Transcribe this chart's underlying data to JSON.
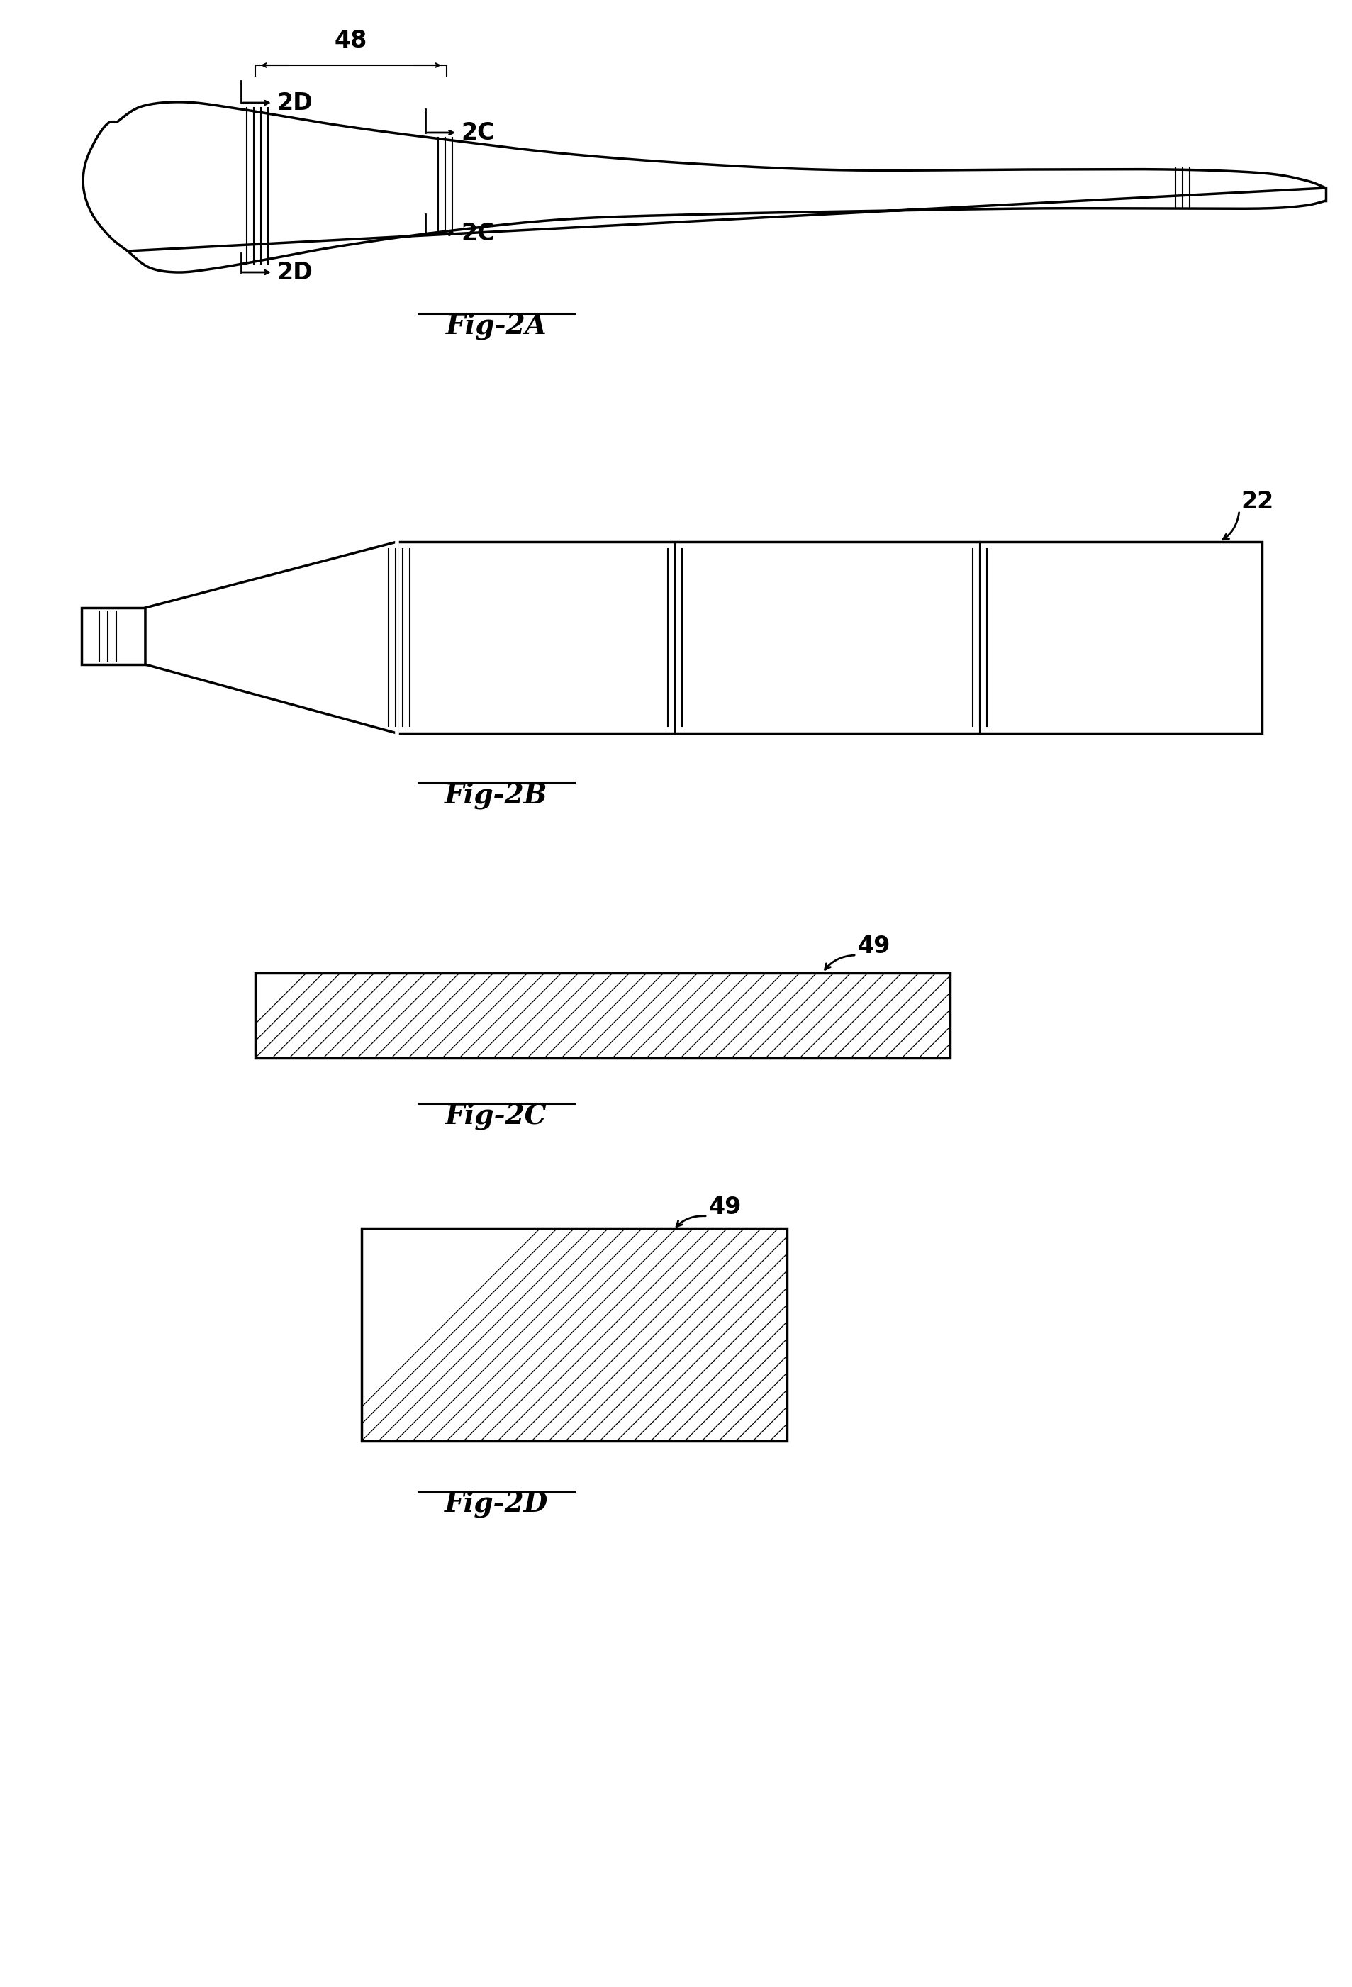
{
  "bg_color": "#ffffff",
  "line_color": "#000000",
  "fig2a_label": "Fig-2A",
  "fig2b_label": "Fig-2B",
  "fig2c_label": "Fig-2C",
  "fig2d_label": "Fig-2D",
  "label_48": "48",
  "label_22": "22",
  "label_49_c": "49",
  "label_49_d": "49",
  "label_2d_top": "2D",
  "label_2c_top": "2C",
  "label_2d_bot": "2D",
  "label_2c_bot": "2C",
  "lw_main": 2.5,
  "lw_thin": 1.5,
  "fontsize_label": 24,
  "fontsize_fig": 28
}
